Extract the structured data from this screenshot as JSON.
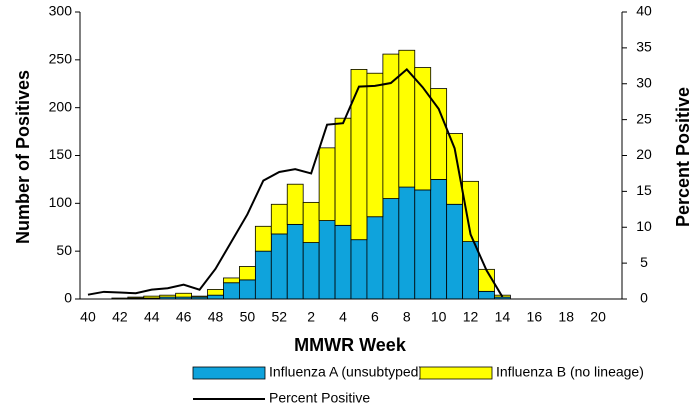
{
  "chart_data": {
    "type": "bar-line",
    "x_label": "MMWR Week",
    "y_label": "Number of Positives",
    "y2_label": "Percent Positive",
    "categories": [
      "40",
      null,
      "42",
      null,
      "44",
      null,
      "46",
      null,
      "48",
      null,
      "50",
      null,
      "52",
      null,
      "2",
      null,
      "4",
      null,
      "6",
      null,
      "8",
      null,
      "10",
      null,
      "12",
      null,
      "14",
      null,
      "16",
      null,
      "18",
      null,
      "20",
      null
    ],
    "ylim": [
      0,
      300
    ],
    "yticks": [
      0,
      50,
      100,
      150,
      200,
      250,
      300
    ],
    "y2lim": [
      0,
      40
    ],
    "y2ticks": [
      0,
      5,
      10,
      15,
      20,
      25,
      30,
      35,
      40
    ],
    "stacked": true,
    "series": [
      {
        "name": "Influenza A (unsubtyped)",
        "kind": "bar",
        "color": "#0fa3dc",
        "values": [
          0,
          0,
          0,
          1,
          1,
          2,
          2,
          2,
          4,
          17,
          20,
          50,
          68,
          78,
          59,
          82,
          77,
          62,
          86,
          105,
          117,
          114,
          125,
          99,
          60,
          8,
          2,
          0,
          0,
          0,
          0,
          0,
          0,
          0
        ]
      },
      {
        "name": "Influenza B (no lineage)",
        "kind": "bar",
        "color": "#ffff00",
        "values": [
          0,
          0,
          1,
          1,
          2,
          2,
          4,
          1,
          6,
          5,
          14,
          26,
          31,
          42,
          42,
          76,
          112,
          178,
          150,
          151,
          143,
          128,
          95,
          74,
          63,
          23,
          2,
          0,
          0,
          0,
          0,
          0,
          0,
          0
        ]
      },
      {
        "name": "Percent Positive",
        "kind": "line",
        "axis": "y2",
        "color": "#000000",
        "values": [
          0.6,
          1.0,
          0.9,
          0.8,
          1.3,
          1.5,
          2.0,
          1.3,
          4.2,
          8.0,
          11.8,
          16.5,
          17.7,
          18.1,
          17.5,
          24.3,
          24.5,
          29.6,
          29.7,
          30.1,
          32.0,
          29.5,
          26.5,
          21.0,
          9.0,
          4.0,
          0.3,
          null,
          null,
          null,
          null,
          null,
          null,
          null
        ]
      }
    ]
  }
}
